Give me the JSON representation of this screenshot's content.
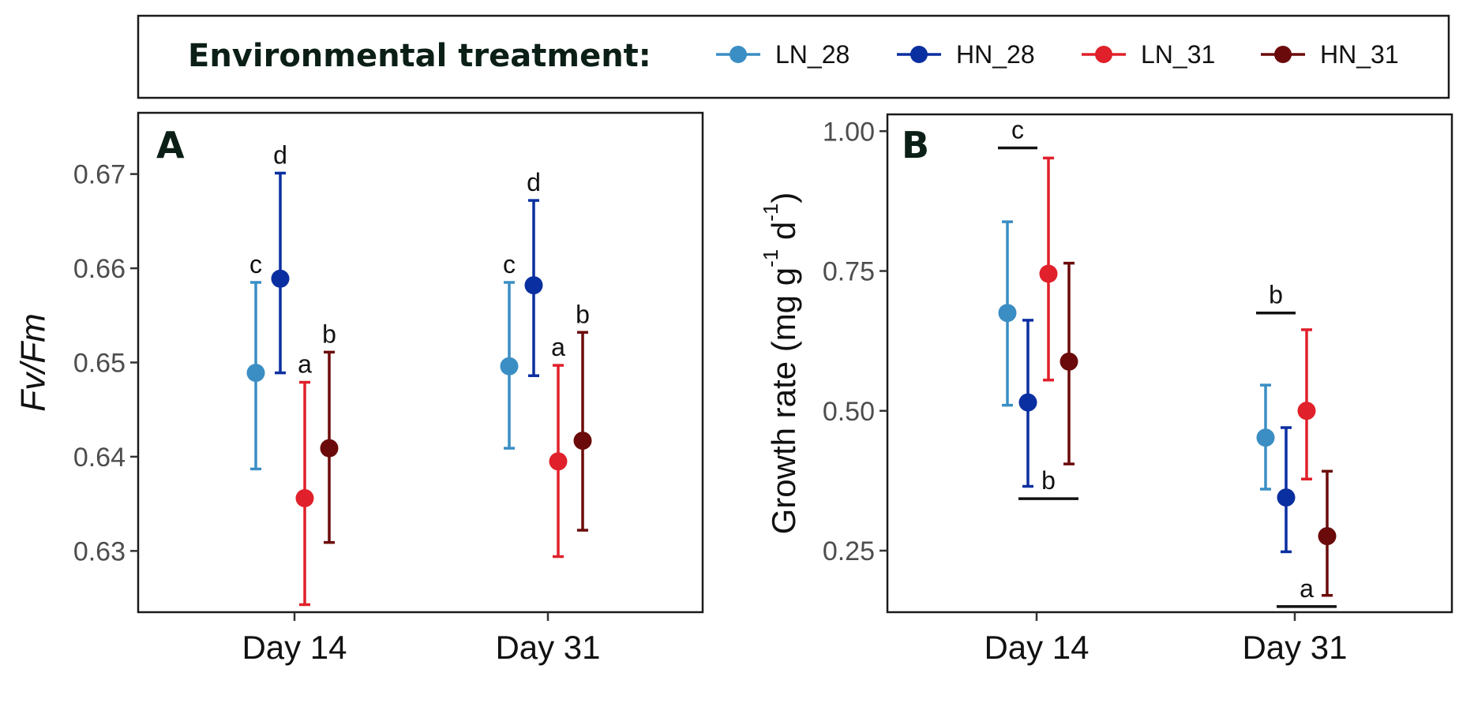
{
  "legend": {
    "title": "Environmental treatment:",
    "entries": [
      {
        "name": "LN_28",
        "color": "#3a8ec4"
      },
      {
        "name": "HN_28",
        "color": "#0a2fa0"
      },
      {
        "name": "LN_31",
        "color": "#e0202a"
      },
      {
        "name": "HN_31",
        "color": "#6b0a0a"
      }
    ]
  },
  "chart_data": [
    {
      "type": "scatter",
      "panel": "A",
      "ylabel": "Fv/Fm",
      "ylim": [
        0.6235,
        0.6765
      ],
      "yticks": [
        0.63,
        0.64,
        0.65,
        0.66,
        0.67
      ],
      "ytick_labels": [
        "0.63",
        "0.64",
        "0.65",
        "0.66",
        "0.67"
      ],
      "categories": [
        "Day 14",
        "Day 31"
      ],
      "grid": false,
      "series": [
        {
          "name": "LN_28",
          "color": "#3a8ec4",
          "values": [
            0.6489,
            0.6496
          ],
          "lower": [
            0.6387,
            0.6409
          ],
          "upper": [
            0.6585,
            0.6585
          ],
          "letters": [
            "c",
            "c"
          ]
        },
        {
          "name": "HN_28",
          "color": "#0a2fa0",
          "values": [
            0.6589,
            0.6582
          ],
          "lower": [
            0.6489,
            0.6486
          ],
          "upper": [
            0.6701,
            0.6672
          ],
          "letters": [
            "d",
            "d"
          ]
        },
        {
          "name": "LN_31",
          "color": "#e0202a",
          "values": [
            0.6356,
            0.6395
          ],
          "lower": [
            0.6243,
            0.6294
          ],
          "upper": [
            0.6479,
            0.6497
          ],
          "letters": [
            "a",
            "a"
          ]
        },
        {
          "name": "HN_31",
          "color": "#6b0a0a",
          "values": [
            0.6409,
            0.6417
          ],
          "lower": [
            0.6309,
            0.6322
          ],
          "upper": [
            0.6511,
            0.6532
          ],
          "letters": [
            "b",
            "b"
          ]
        }
      ]
    },
    {
      "type": "scatter",
      "panel": "B",
      "ylabel": "Growth rate (mg g⁻¹ d⁻¹)",
      "ylabel_parts": [
        "Growth rate (mg g",
        "-1",
        " d",
        "-1",
        ")"
      ],
      "ylim": [
        0.14,
        1.03
      ],
      "yticks": [
        0.25,
        0.5,
        0.75,
        1.0
      ],
      "ytick_labels": [
        "0.25",
        "0.50",
        "0.75",
        "1.00"
      ],
      "categories": [
        "Day 14",
        "Day 31"
      ],
      "grid": false,
      "series": [
        {
          "name": "LN_28",
          "color": "#3a8ec4",
          "values": [
            0.675,
            0.452
          ],
          "lower": [
            0.51,
            0.36
          ],
          "upper": [
            0.838,
            0.546
          ]
        },
        {
          "name": "HN_28",
          "color": "#0a2fa0",
          "values": [
            0.515,
            0.345
          ],
          "lower": [
            0.365,
            0.248
          ],
          "upper": [
            0.662,
            0.47
          ]
        },
        {
          "name": "LN_31",
          "color": "#e0202a",
          "values": [
            0.745,
            0.5
          ],
          "lower": [
            0.555,
            0.378
          ],
          "upper": [
            0.952,
            0.645
          ]
        },
        {
          "name": "HN_31",
          "color": "#6b0a0a",
          "values": [
            0.588,
            0.276
          ],
          "lower": [
            0.405,
            0.17
          ],
          "upper": [
            0.764,
            0.392
          ]
        }
      ],
      "group_letters": [
        {
          "letter": "c",
          "category": "Day 14",
          "series": [
            "LN_28",
            "HN_28"
          ],
          "line_y": 0.97
        },
        {
          "letter": "b",
          "category": "Day 14",
          "series": [
            "HN_28",
            "HN_31"
          ],
          "line_y": 0.343
        },
        {
          "letter": "b",
          "category": "Day 31",
          "series": [
            "LN_28",
            "HN_28"
          ],
          "line_y": 0.675
        },
        {
          "letter": "a",
          "category": "Day 31",
          "series": [
            "HN_28",
            "HN_31"
          ],
          "line_y": 0.15
        }
      ]
    }
  ]
}
